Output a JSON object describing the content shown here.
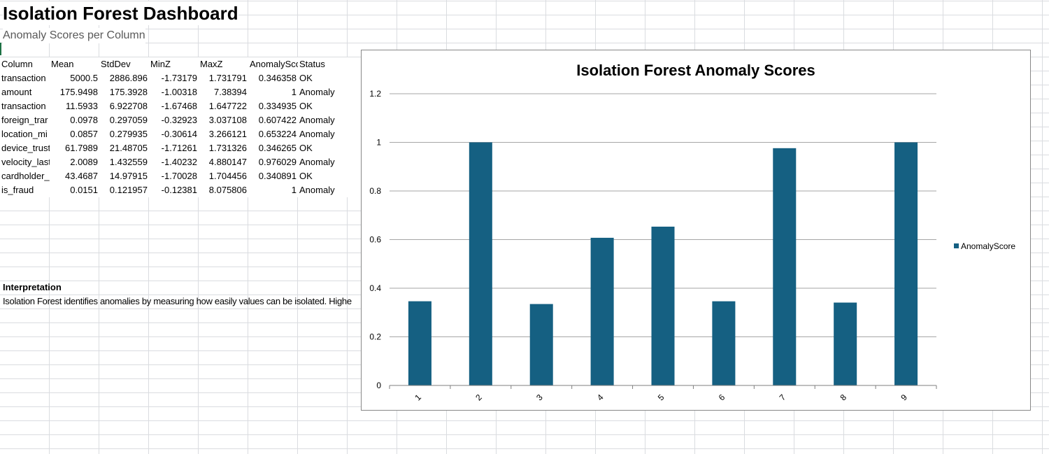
{
  "sheet": {
    "title": "Isolation Forest Dashboard",
    "subtitle": "Anomaly Scores per Column",
    "headers": [
      "Column",
      "Mean",
      "StdDev",
      "MinZ",
      "MaxZ",
      "AnomalySco",
      "Status"
    ],
    "rows": [
      [
        "transaction",
        "5000.5",
        "2886.896",
        "-1.73179",
        "1.731791",
        "0.346358",
        "OK"
      ],
      [
        "amount",
        "175.9498",
        "175.3928",
        "-1.00318",
        "7.38394",
        "1",
        "Anomaly"
      ],
      [
        "transaction",
        "11.5933",
        "6.922708",
        "-1.67468",
        "1.647722",
        "0.334935",
        "OK"
      ],
      [
        "foreign_trar",
        "0.0978",
        "0.297059",
        "-0.32923",
        "3.037108",
        "0.607422",
        "Anomaly"
      ],
      [
        "location_mi",
        "0.0857",
        "0.279935",
        "-0.30614",
        "3.266121",
        "0.653224",
        "Anomaly"
      ],
      [
        "device_trust",
        "61.7989",
        "21.48705",
        "-1.71261",
        "1.731326",
        "0.346265",
        "OK"
      ],
      [
        "velocity_last",
        "2.0089",
        "1.432559",
        "-1.40232",
        "4.880147",
        "0.976029",
        "Anomaly"
      ],
      [
        "cardholder_",
        "43.4687",
        "14.97915",
        "-1.70028",
        "1.704456",
        "0.340891",
        "OK"
      ],
      [
        "is_fraud",
        "0.0151",
        "0.121957",
        "-0.12381",
        "8.075806",
        "1",
        "Anomaly"
      ]
    ],
    "interpretation_heading": "Interpretation",
    "interpretation_text": "Isolation Forest identifies anomalies by measuring how easily values can be isolated. Highe"
  },
  "chart_data": {
    "type": "bar",
    "title": "Isolation Forest Anomaly Scores",
    "categories": [
      "1",
      "2",
      "3",
      "4",
      "5",
      "6",
      "7",
      "8",
      "9"
    ],
    "series": [
      {
        "name": "AnomalyScore",
        "values": [
          0.346358,
          1,
          0.334935,
          0.607422,
          0.653224,
          0.346265,
          0.976029,
          0.340891,
          1
        ]
      }
    ],
    "ylim": [
      0,
      1.2
    ],
    "yticks": [
      "0",
      "0.2",
      "0.4",
      "0.6",
      "0.8",
      "1",
      "1.2"
    ],
    "grid": true,
    "legend": "right",
    "bar_color": "#156082",
    "grid_color": "#a6a6a6"
  }
}
